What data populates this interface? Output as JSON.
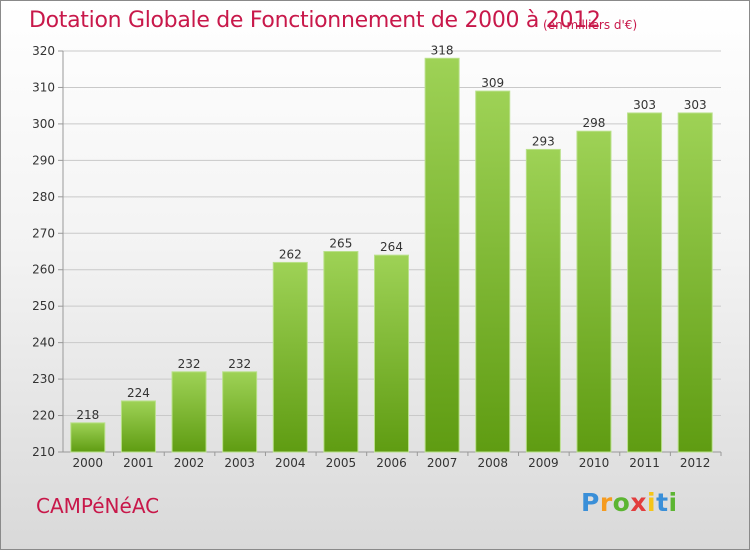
{
  "header": {
    "title": "Dotation Globale de Fonctionnement de 2000 à 2012",
    "subtitle": "(en milliers d'€)"
  },
  "footer": {
    "place": "CAMPéNéAC",
    "logo_text": "Proxiti"
  },
  "colors": {
    "title": "#c8184a",
    "bar_top": "#9ed256",
    "bar_bottom": "#5f9c12",
    "grid": "#c9c9c9"
  },
  "chart_data": {
    "type": "bar",
    "title": "Dotation Globale de Fonctionnement de 2000 à 2012",
    "subtitle": "(en milliers d'€)",
    "xlabel": "",
    "ylabel": "",
    "categories": [
      "2000",
      "2001",
      "2002",
      "2003",
      "2004",
      "2005",
      "2006",
      "2007",
      "2008",
      "2009",
      "2010",
      "2011",
      "2012"
    ],
    "values": [
      218,
      224,
      232,
      232,
      262,
      265,
      264,
      318,
      309,
      293,
      298,
      303,
      303
    ],
    "ylim": [
      210,
      320
    ],
    "yticks": [
      210,
      220,
      230,
      240,
      250,
      260,
      270,
      280,
      290,
      300,
      310,
      320
    ],
    "grid": "horizontal",
    "data_labels": true
  }
}
